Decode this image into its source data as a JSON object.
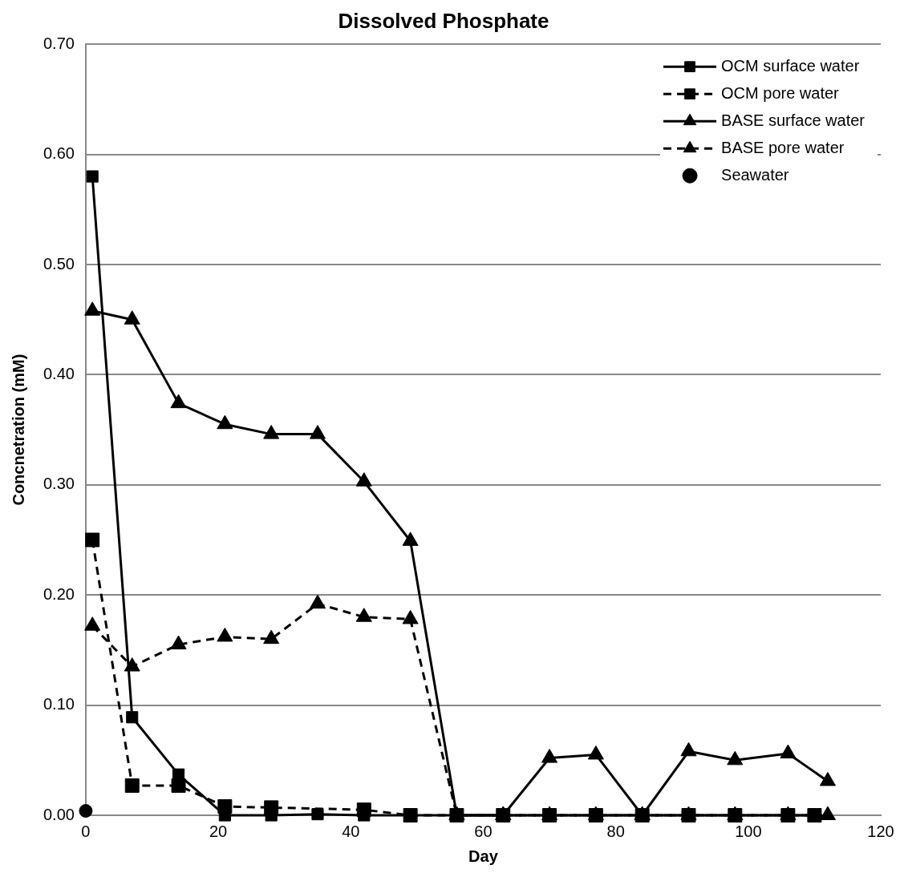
{
  "chart_data": {
    "type": "line",
    "title": "Dissolved Phosphate",
    "xlabel": "Day",
    "ylabel": "Concnetration (mM)",
    "xlim": [
      0,
      120
    ],
    "xticks": [
      0,
      20,
      40,
      60,
      80,
      100,
      120
    ],
    "ylim": [
      0,
      0.7
    ],
    "yticks": [
      {
        "value": 0,
        "label": "0.00"
      },
      {
        "value": 0.1,
        "label": "0.10"
      },
      {
        "value": 0.2,
        "label": "0.20"
      },
      {
        "value": 0.3,
        "label": "0.30"
      },
      {
        "value": 0.4,
        "label": "0.40"
      },
      {
        "value": 0.5,
        "label": "0.50"
      },
      {
        "value": 0.6,
        "label": "0.60"
      },
      {
        "value": 0.7,
        "label": "0.70"
      }
    ],
    "grid": "y",
    "legend": "top right",
    "series": [
      {
        "name": "OCM surface water",
        "color": "#000000",
        "marker": "square",
        "line_style": "solid",
        "x": [
          1,
          7,
          14,
          21,
          28,
          35,
          42,
          49,
          56,
          63,
          70,
          77,
          84,
          91,
          98,
          106,
          110
        ],
        "values": [
          0.58,
          0.089,
          0.037,
          0,
          0,
          0.001,
          0,
          0,
          0,
          0,
          0,
          0,
          0,
          0,
          0,
          0,
          0
        ]
      },
      {
        "name": "OCM pore water",
        "color": "#000000",
        "marker": "square",
        "line_style": "dashed",
        "x": [
          1,
          7,
          14,
          21,
          28,
          35,
          42,
          49,
          56,
          63,
          70,
          77,
          84,
          91,
          98,
          106,
          110
        ],
        "values": [
          0.25,
          0.027,
          0.027,
          0.008,
          0.007,
          null,
          0.005,
          0,
          0,
          0,
          0,
          0,
          0,
          0,
          0,
          0,
          0
        ]
      },
      {
        "name": "BASE surface water",
        "color": "#000000",
        "marker": "triangle",
        "line_style": "solid",
        "x": [
          1,
          7,
          14,
          21,
          28,
          35,
          42,
          49,
          56,
          63,
          70,
          77,
          84,
          91,
          98,
          106,
          112
        ],
        "values": [
          0.458,
          0.45,
          0.374,
          0.355,
          0.346,
          0.346,
          0.303,
          0.249,
          0,
          0,
          0.052,
          0.055,
          0,
          0.058,
          0.05,
          0.056,
          0.031
        ]
      },
      {
        "name": "BASE pore water",
        "color": "#000000",
        "marker": "triangle",
        "line_style": "dashed",
        "x": [
          1,
          7,
          14,
          21,
          28,
          35,
          42,
          49,
          56,
          63,
          70,
          77,
          84,
          91,
          98,
          106,
          112
        ],
        "values": [
          0.172,
          0.135,
          0.155,
          0.162,
          0.16,
          0.192,
          0.18,
          0.178,
          0,
          0,
          0,
          0,
          0,
          0,
          0,
          0,
          0
        ]
      },
      {
        "name": "Seawater",
        "type": "scatter",
        "color": "#000000",
        "marker": "circle",
        "x": [
          0
        ],
        "values": [
          0.004
        ]
      }
    ]
  }
}
